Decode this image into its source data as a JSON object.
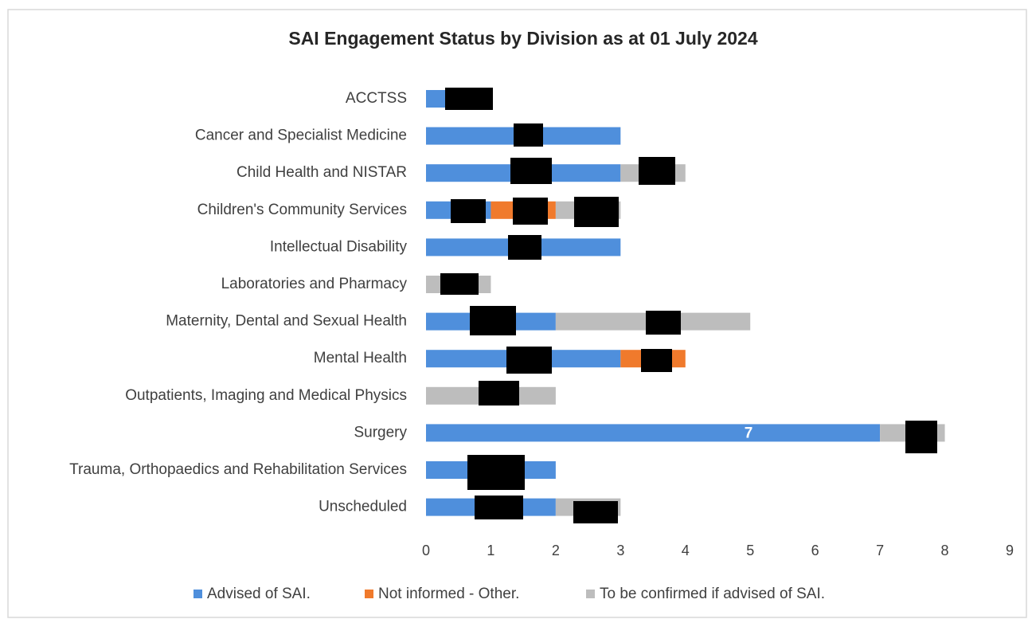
{
  "chart_data": {
    "type": "stacked_barh",
    "title": "SAI Engagement Status by Division as at 01 July 2024",
    "categories": [
      "ACCTSS",
      "Cancer and Specialist Medicine",
      "Child Health and NISTAR",
      "Children's Community Services",
      "Intellectual Disability",
      "Laboratories and Pharmacy",
      "Maternity, Dental and Sexual Health",
      "Mental Health",
      "Outpatients, Imaging and Medical Physics",
      "Surgery",
      "Trauma, Orthopaedics and Rehabilitation Services",
      "Unscheduled"
    ],
    "series": [
      {
        "name": "Advised of SAI.",
        "color": "#4f8fdc",
        "values": [
          1,
          3,
          3,
          1,
          3,
          0,
          2,
          3,
          0,
          7,
          2,
          2
        ]
      },
      {
        "name": "Not informed - Other.",
        "color": "#f07a2c",
        "values": [
          0,
          0,
          0,
          1,
          0,
          0,
          0,
          1,
          0,
          0,
          0,
          0
        ]
      },
      {
        "name": "To be confirmed if advised of SAI.",
        "color": "#bdbdbd",
        "values": [
          0,
          0,
          1,
          1,
          0,
          1,
          3,
          0,
          2,
          1,
          0,
          1
        ]
      }
    ],
    "xlim": [
      0,
      9
    ],
    "xticks": [
      0,
      1,
      2,
      3,
      4,
      5,
      6,
      7,
      8,
      9
    ],
    "grid": false,
    "legend": "bottom"
  }
}
